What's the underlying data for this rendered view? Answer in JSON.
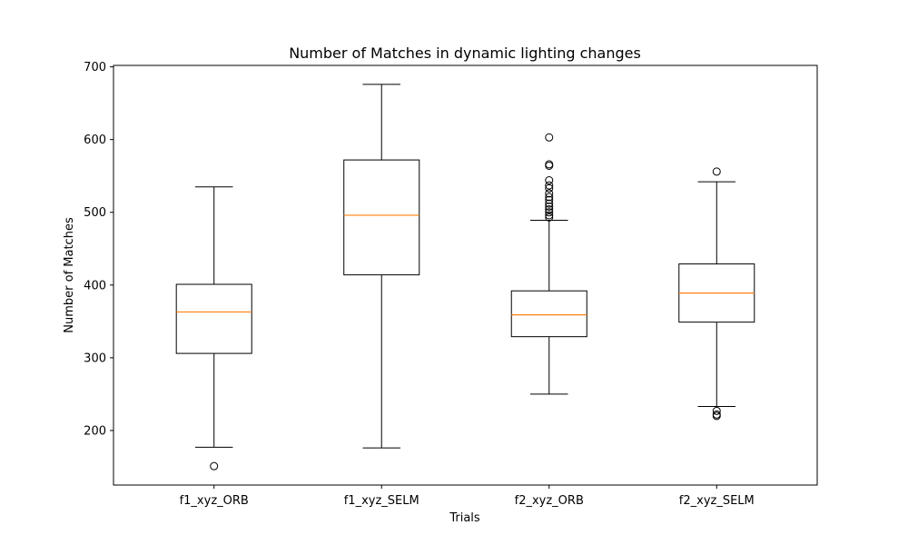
{
  "chart_data": {
    "type": "box",
    "title": "Number of Matches in dynamic lighting changes",
    "xlabel": "Trials",
    "ylabel": "Number of Matches",
    "ylim": [
      125,
      702
    ],
    "yticks": [
      200,
      300,
      400,
      500,
      600,
      700
    ],
    "grid": false,
    "colors": {
      "box": "#000000",
      "median": "#ff7f0e",
      "flier": "#000000"
    },
    "categories": [
      "f1_xyz_ORB",
      "f1_xyz_SELM",
      "f2_xyz_ORB",
      "f2_xyz_SELM"
    ],
    "boxes": [
      {
        "name": "f1_xyz_ORB",
        "whisker_low": 177,
        "q1": 306,
        "median": 363,
        "q3": 401,
        "whisker_high": 535,
        "fliers": [
          151
        ]
      },
      {
        "name": "f1_xyz_SELM",
        "whisker_low": 176,
        "q1": 414,
        "median": 496,
        "q3": 572,
        "whisker_high": 676,
        "fliers": []
      },
      {
        "name": "f2_xyz_ORB",
        "whisker_low": 250,
        "q1": 329,
        "median": 359,
        "q3": 392,
        "whisker_high": 489,
        "fliers": [
          493,
          496,
          500,
          504,
          508,
          512,
          517,
          521,
          526,
          533,
          537,
          544,
          564,
          566,
          603
        ]
      },
      {
        "name": "f2_xyz_SELM",
        "whisker_low": 233,
        "q1": 349,
        "median": 389,
        "q3": 429,
        "whisker_high": 542,
        "fliers": [
          220,
          222,
          227,
          556
        ]
      }
    ]
  }
}
